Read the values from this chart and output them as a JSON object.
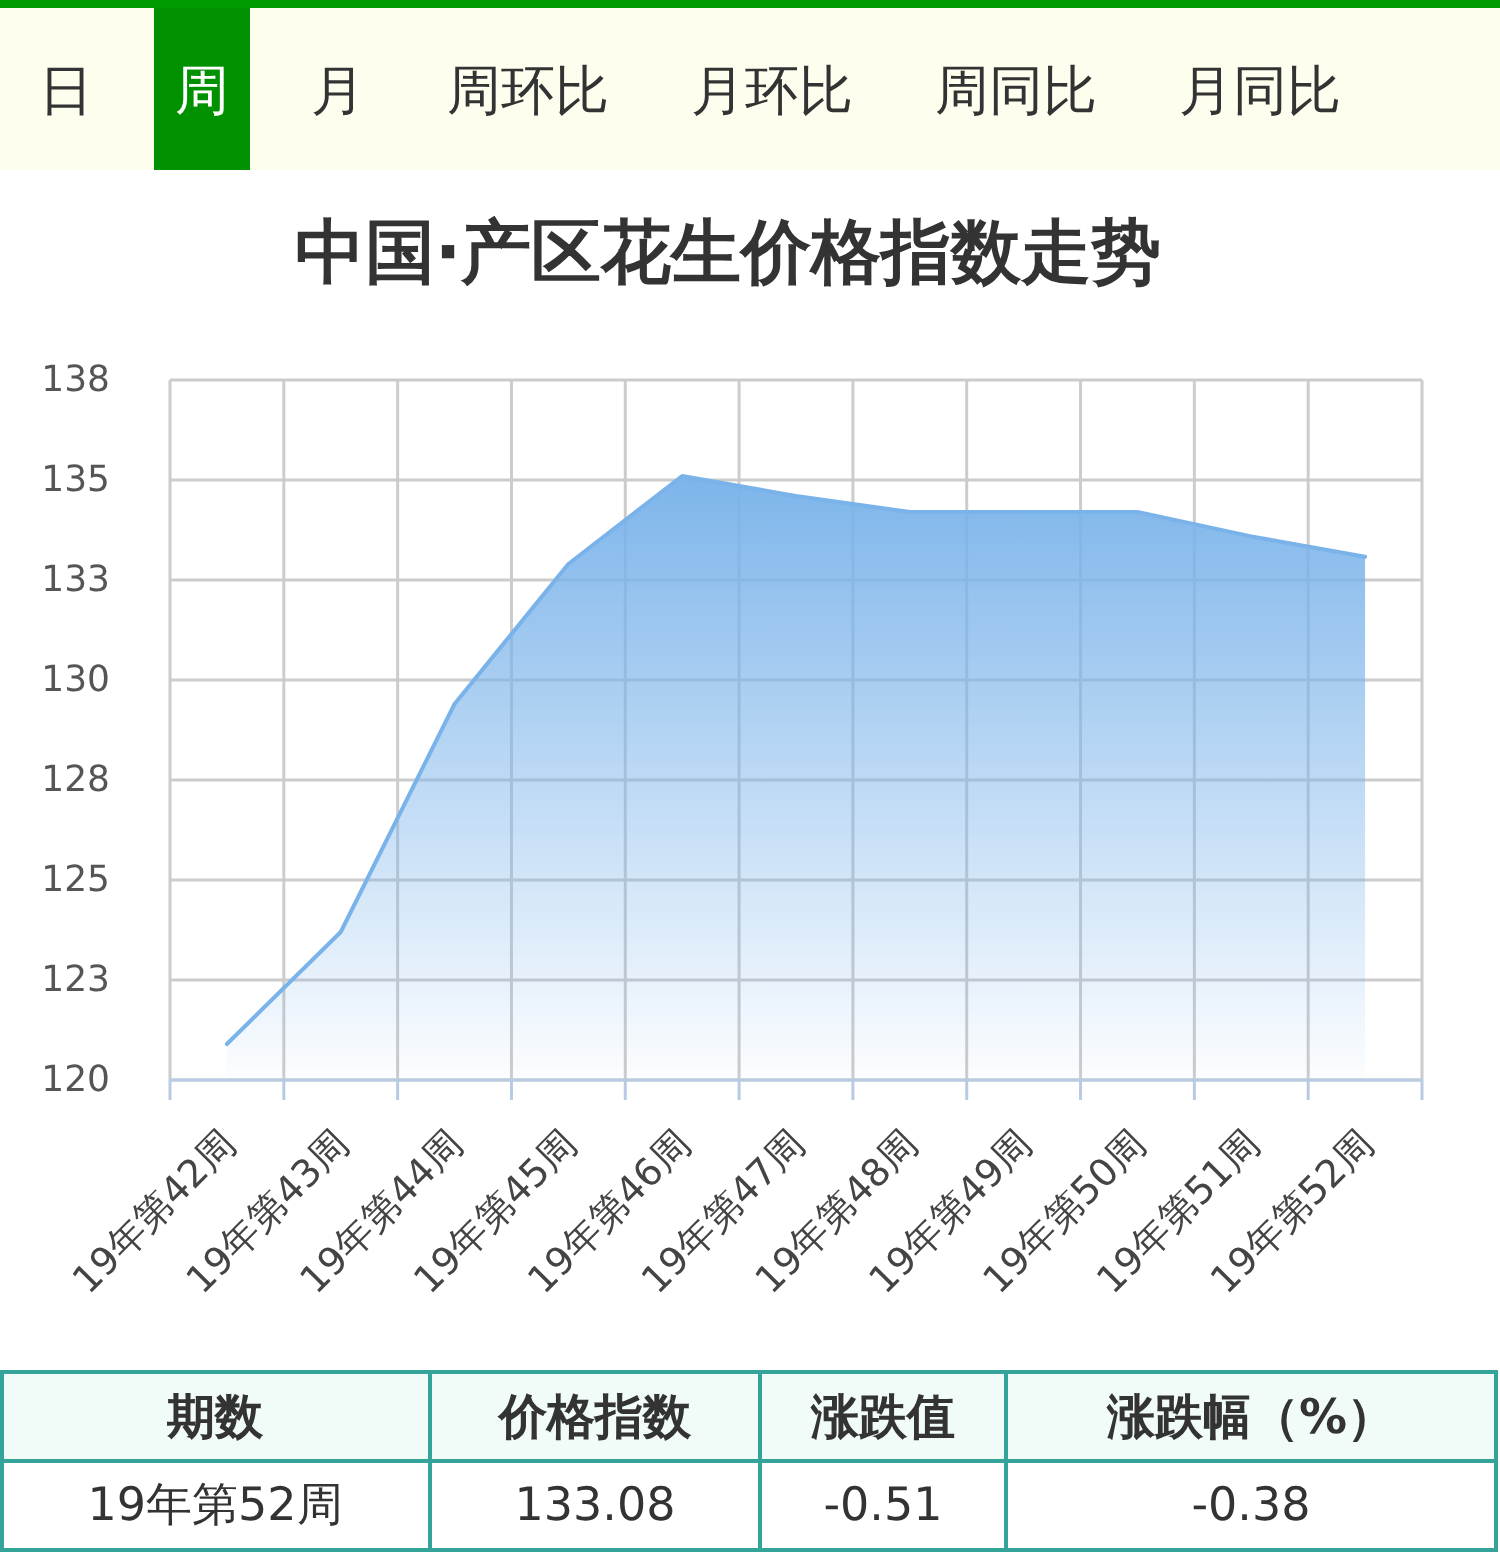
{
  "chart_data": {
    "type": "area",
    "title": "中国·产区花生价格指数走势",
    "categories": [
      "19年第42周",
      "19年第43周",
      "19年第44周",
      "19年第45周",
      "19年第46周",
      "19年第47周",
      "19年第48周",
      "19年第49周",
      "19年第50周",
      "19年第51周",
      "19年第52周"
    ],
    "series": [
      {
        "color": "#7ab3ea",
        "values": [
          120.9,
          123.7,
          129.4,
          132.9,
          135.1,
          134.6,
          134.2,
          134.2,
          134.2,
          133.59,
          133.08
        ]
      }
    ],
    "ylim": [
      120,
      137.5
    ],
    "yticks": [
      120,
      {
        "value": 122.5,
        "label": "123"
      },
      125,
      {
        "value": 127.5,
        "label": "128"
      },
      130,
      {
        "value": 132.5,
        "label": "133"
      },
      135,
      {
        "value": 137.5,
        "label": "138"
      }
    ],
    "grid": true,
    "annotations": [
      "日",
      "周",
      "月",
      "周环比",
      "月环比",
      "周同比",
      "月同比",
      "期数",
      "价格指数",
      "涨跌值",
      "涨跌幅（%）",
      "19年第52周",
      "133.08",
      "-0.51",
      "-0.38"
    ]
  }
}
